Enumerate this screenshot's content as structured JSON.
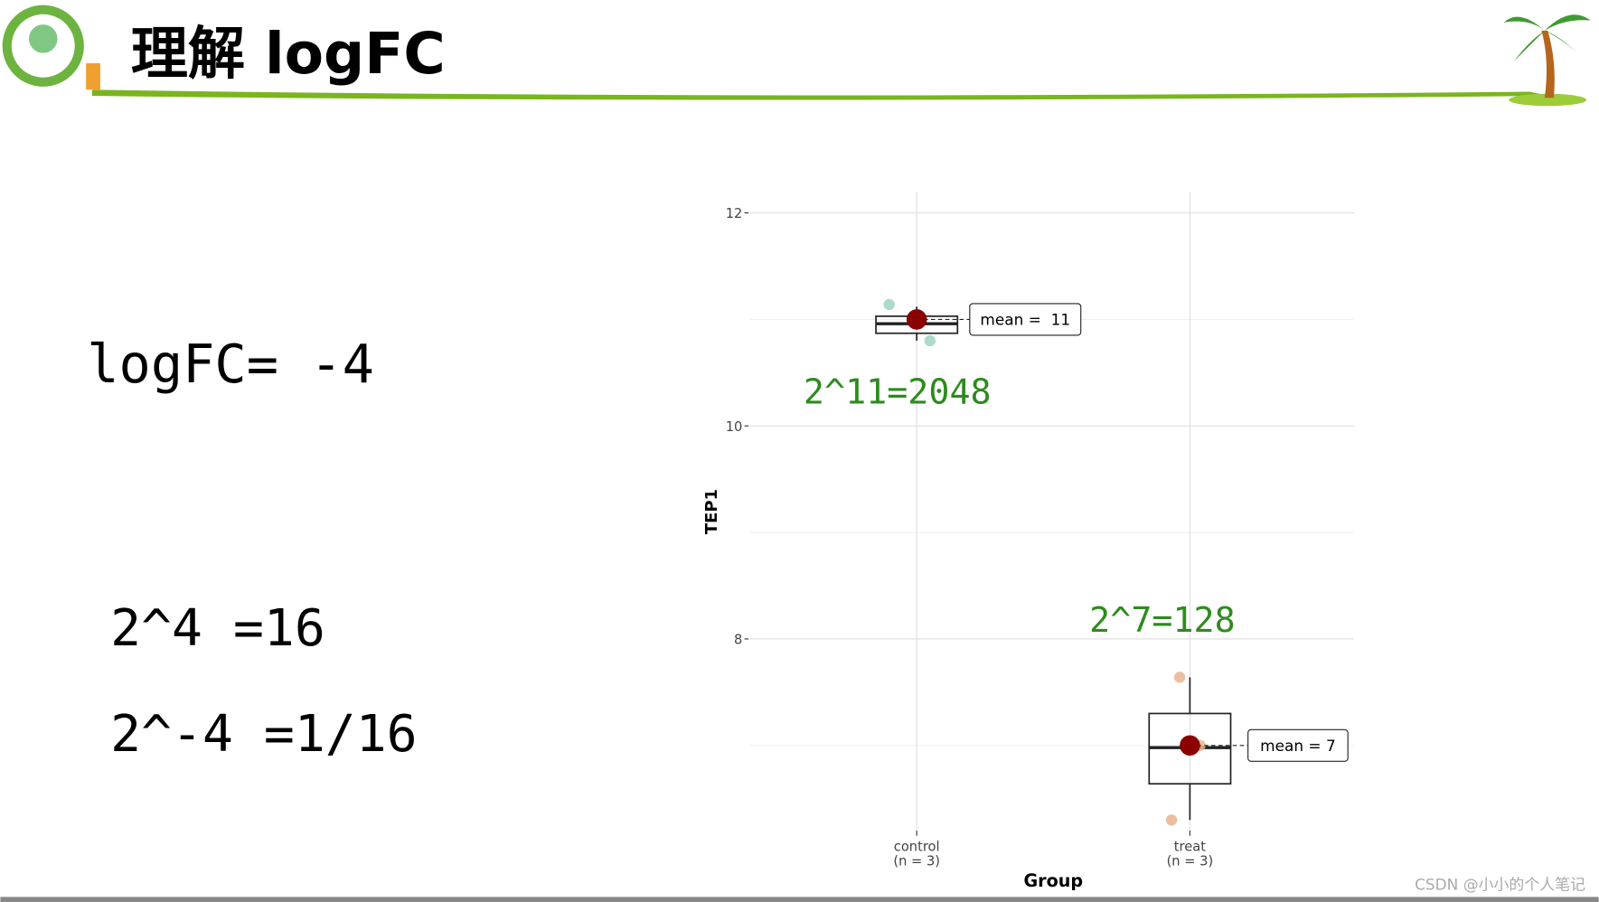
{
  "header": {
    "title": "理解 logFC"
  },
  "notes": [
    "logFC= -4",
    "2^4 =16",
    "2^-4 =1/16"
  ],
  "chart_data": {
    "type": "boxplot",
    "categories": [
      "control",
      "treat"
    ],
    "n_labels": [
      "(n = 3)",
      "(n = 3)"
    ],
    "x_label": "Group",
    "y_label": "TEP1",
    "ylim": [
      6.2,
      12.2
    ],
    "yticks": [
      8,
      10,
      12
    ],
    "minor_grid": [
      7,
      9,
      11
    ],
    "grid": true,
    "boxes": [
      {
        "whisker_low": 10.8,
        "q1": 10.87,
        "median": 10.96,
        "q3": 11.03,
        "whisker_high": 11.12
      },
      {
        "whisker_low": 6.3,
        "q1": 6.64,
        "median": 6.98,
        "q3": 7.3,
        "whisker_high": 7.64
      }
    ],
    "points": [
      [
        11.14,
        10.97,
        10.8
      ],
      [
        7.64,
        7.0,
        6.3
      ]
    ],
    "point_colors": [
      "#9fd3c0",
      "#e8b48f"
    ],
    "means": [
      11,
      7
    ],
    "mean_labels": [
      "mean =  11",
      "mean = 7"
    ],
    "mean_color": "#8b0000",
    "annotations": [
      "2^11=2048",
      "2^7=128"
    ],
    "annotation_color": "#2e8b1e"
  },
  "watermark": "CSDN @小小的个人笔记"
}
